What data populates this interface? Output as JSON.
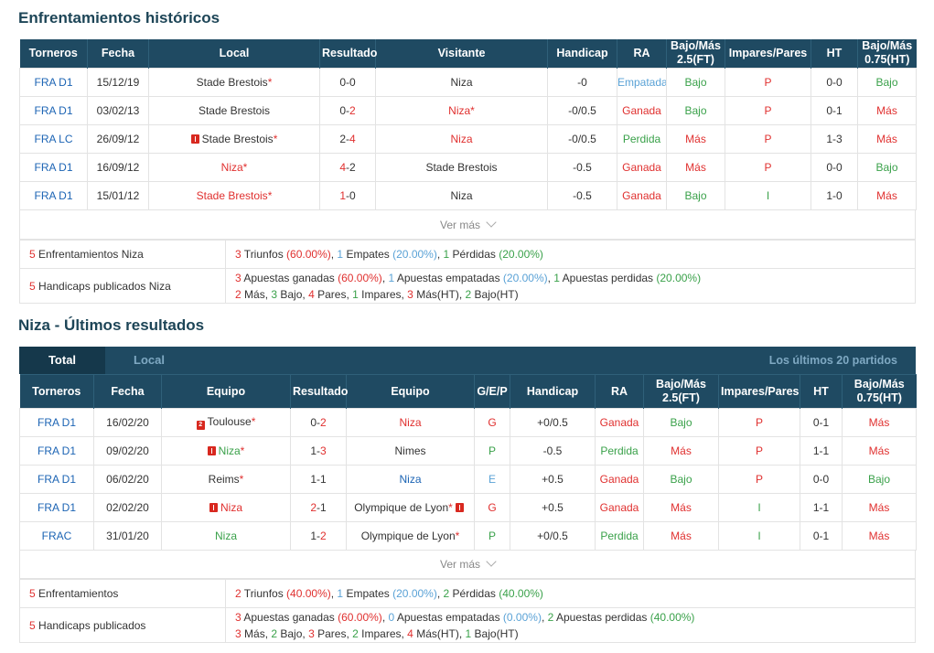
{
  "h2h": {
    "title": "Enfrentamientos históricos",
    "headers": [
      "Torneros",
      "Fecha",
      "Local",
      "Resultado",
      "Visitante",
      "Handicap",
      "RA",
      "Bajo/Más\n2.5(FT)",
      "Impares/Pares",
      "HT",
      "Bajo/Más\n0.75(HT)"
    ],
    "rows": [
      {
        "torneo": "FRA D1",
        "fecha": "15/12/19",
        "local": "Stade Brestois",
        "local_star": "*",
        "local_color": "dark",
        "local_flag": "",
        "res_a": "0",
        "res_b": "0",
        "res_a_color": "dark",
        "res_b_color": "dark",
        "visit": "Niza",
        "visit_star": "",
        "visit_color": "dark",
        "hc": "-0",
        "ra": "Empatada",
        "ra_color": "lblue",
        "bm": "Bajo",
        "bm_color": "green",
        "ip": "P",
        "ip_color": "red",
        "ht": "0-0",
        "bmht": "Bajo",
        "bmht_color": "green"
      },
      {
        "torneo": "FRA D1",
        "fecha": "03/02/13",
        "local": "Stade Brestois",
        "local_star": "",
        "local_color": "dark",
        "local_flag": "",
        "res_a": "0",
        "res_b": "2",
        "res_a_color": "dark",
        "res_b_color": "red",
        "visit": "Niza",
        "visit_star": "*",
        "visit_color": "red",
        "hc": "-0/0.5",
        "ra": "Ganada",
        "ra_color": "red",
        "bm": "Bajo",
        "bm_color": "green",
        "ip": "P",
        "ip_color": "red",
        "ht": "0-1",
        "bmht": "Más",
        "bmht_color": "red"
      },
      {
        "torneo": "FRA LC",
        "fecha": "26/09/12",
        "local": "Stade Brestois",
        "local_star": "*",
        "local_color": "dark",
        "local_flag": "1",
        "res_a": "2",
        "res_b": "4",
        "res_a_color": "dark",
        "res_b_color": "red",
        "visit": "Niza",
        "visit_star": "",
        "visit_color": "red",
        "hc": "-0/0.5",
        "ra": "Perdida",
        "ra_color": "green",
        "bm": "Más",
        "bm_color": "red",
        "ip": "P",
        "ip_color": "red",
        "ht": "1-3",
        "bmht": "Más",
        "bmht_color": "red"
      },
      {
        "torneo": "FRA D1",
        "fecha": "16/09/12",
        "local": "Niza",
        "local_star": "*",
        "local_color": "red",
        "local_flag": "",
        "res_a": "4",
        "res_b": "2",
        "res_a_color": "red",
        "res_b_color": "dark",
        "visit": "Stade Brestois",
        "visit_star": "",
        "visit_color": "dark",
        "hc": "-0.5",
        "ra": "Ganada",
        "ra_color": "red",
        "bm": "Más",
        "bm_color": "red",
        "ip": "P",
        "ip_color": "red",
        "ht": "0-0",
        "bmht": "Bajo",
        "bmht_color": "green"
      },
      {
        "torneo": "FRA D1",
        "fecha": "15/01/12",
        "local": "Stade Brestois",
        "local_star": "*",
        "local_color": "red",
        "local_flag": "",
        "res_a": "1",
        "res_b": "0",
        "res_a_color": "red",
        "res_b_color": "dark",
        "visit": "Niza",
        "visit_star": "",
        "visit_color": "dark",
        "hc": "-0.5",
        "ra": "Ganada",
        "ra_color": "red",
        "bm": "Bajo",
        "bm_color": "green",
        "ip": "I",
        "ip_color": "green",
        "ht": "1-0",
        "bmht": "Más",
        "bmht_color": "red"
      }
    ],
    "ver_mas": "Ver más",
    "summary": [
      {
        "label_n": "5",
        "label": " Enfrentamientos Niza",
        "lines": [
          [
            {
              "t": "3",
              "c": "red"
            },
            {
              "t": " Triunfos ",
              "c": "dark"
            },
            {
              "t": "(60.00%)",
              "c": "red"
            },
            {
              "t": ", ",
              "c": "dark"
            },
            {
              "t": "1",
              "c": "lblue"
            },
            {
              "t": " Empates ",
              "c": "dark"
            },
            {
              "t": "(20.00%)",
              "c": "lblue"
            },
            {
              "t": ", ",
              "c": "dark"
            },
            {
              "t": "1",
              "c": "green"
            },
            {
              "t": " Pérdidas ",
              "c": "dark"
            },
            {
              "t": "(20.00%)",
              "c": "green"
            }
          ]
        ]
      },
      {
        "label_n": "5",
        "label": " Handicaps publicados Niza",
        "lines": [
          [
            {
              "t": "3",
              "c": "red"
            },
            {
              "t": " Apuestas ganadas ",
              "c": "dark"
            },
            {
              "t": "(60.00%)",
              "c": "red"
            },
            {
              "t": ", ",
              "c": "dark"
            },
            {
              "t": "1",
              "c": "lblue"
            },
            {
              "t": " Apuestas empatadas ",
              "c": "dark"
            },
            {
              "t": "(20.00%)",
              "c": "lblue"
            },
            {
              "t": ", ",
              "c": "dark"
            },
            {
              "t": "1",
              "c": "green"
            },
            {
              "t": " Apuestas perdidas ",
              "c": "dark"
            },
            {
              "t": "(20.00%)",
              "c": "green"
            }
          ],
          [
            {
              "t": "2",
              "c": "red"
            },
            {
              "t": " Más, ",
              "c": "dark"
            },
            {
              "t": "3",
              "c": "green"
            },
            {
              "t": " Bajo, ",
              "c": "dark"
            },
            {
              "t": "4",
              "c": "red"
            },
            {
              "t": " Pares, ",
              "c": "dark"
            },
            {
              "t": "1",
              "c": "green"
            },
            {
              "t": " Impares, ",
              "c": "dark"
            },
            {
              "t": "3",
              "c": "red"
            },
            {
              "t": " Más(HT), ",
              "c": "dark"
            },
            {
              "t": "2",
              "c": "green"
            },
            {
              "t": " Bajo(HT)",
              "c": "dark"
            }
          ]
        ]
      }
    ]
  },
  "last": {
    "title": "Niza - Últimos resultados",
    "tabs": {
      "total": "Total",
      "local": "Local",
      "right": "Los últimos 20 partidos"
    },
    "headers": [
      "Torneros",
      "Fecha",
      "Equipo",
      "Resultado",
      "Equipo",
      "G/E/P",
      "Handicap",
      "RA",
      "Bajo/Más\n2.5(FT)",
      "Impares/Pares",
      "HT",
      "Bajo/Más\n0.75(HT)"
    ],
    "rows": [
      {
        "torneo": "FRA D1",
        "fecha": "16/02/20",
        "home": "Toulouse",
        "home_star": "*",
        "home_color": "dark",
        "home_flag": "2",
        "res_a": "0",
        "res_b": "2",
        "res_a_color": "dark",
        "res_b_color": "red",
        "away": "Niza",
        "away_star": "",
        "away_color": "red",
        "away_flag": "",
        "gep": "G",
        "gep_color": "red",
        "hc": "+0/0.5",
        "ra": "Ganada",
        "ra_color": "red",
        "bm": "Bajo",
        "bm_color": "green",
        "ip": "P",
        "ip_color": "red",
        "ht": "0-1",
        "bmht": "Más",
        "bmht_color": "red"
      },
      {
        "torneo": "FRA D1",
        "fecha": "09/02/20",
        "home": "Niza",
        "home_star": "*",
        "home_color": "green",
        "home_flag": "1",
        "res_a": "1",
        "res_b": "3",
        "res_a_color": "dark",
        "res_b_color": "red",
        "away": "Nimes",
        "away_star": "",
        "away_color": "dark",
        "away_flag": "",
        "gep": "P",
        "gep_color": "green",
        "hc": "-0.5",
        "ra": "Perdida",
        "ra_color": "green",
        "bm": "Más",
        "bm_color": "red",
        "ip": "P",
        "ip_color": "red",
        "ht": "1-1",
        "bmht": "Más",
        "bmht_color": "red"
      },
      {
        "torneo": "FRA D1",
        "fecha": "06/02/20",
        "home": "Reims",
        "home_star": "*",
        "home_color": "dark",
        "home_flag": "",
        "res_a": "1",
        "res_b": "1",
        "res_a_color": "dark",
        "res_b_color": "dark",
        "away": "Niza",
        "away_star": "",
        "away_color": "blue",
        "away_flag": "",
        "gep": "E",
        "gep_color": "lblue",
        "hc": "+0.5",
        "ra": "Ganada",
        "ra_color": "red",
        "bm": "Bajo",
        "bm_color": "green",
        "ip": "P",
        "ip_color": "red",
        "ht": "0-0",
        "bmht": "Bajo",
        "bmht_color": "green"
      },
      {
        "torneo": "FRA D1",
        "fecha": "02/02/20",
        "home": "Niza",
        "home_star": "",
        "home_color": "red",
        "home_flag": "1",
        "res_a": "2",
        "res_b": "1",
        "res_a_color": "red",
        "res_b_color": "dark",
        "away": "Olympique de Lyon",
        "away_star": "*",
        "away_color": "dark",
        "away_flag": "1",
        "gep": "G",
        "gep_color": "red",
        "hc": "+0.5",
        "ra": "Ganada",
        "ra_color": "red",
        "bm": "Más",
        "bm_color": "red",
        "ip": "I",
        "ip_color": "green",
        "ht": "1-1",
        "bmht": "Más",
        "bmht_color": "red"
      },
      {
        "torneo": "FRAC",
        "fecha": "31/01/20",
        "home": "Niza",
        "home_star": "",
        "home_color": "green",
        "home_flag": "",
        "res_a": "1",
        "res_b": "2",
        "res_a_color": "dark",
        "res_b_color": "red",
        "away": "Olympique de Lyon",
        "away_star": "*",
        "away_color": "dark",
        "away_flag": "",
        "gep": "P",
        "gep_color": "green",
        "hc": "+0/0.5",
        "ra": "Perdida",
        "ra_color": "green",
        "bm": "Más",
        "bm_color": "red",
        "ip": "I",
        "ip_color": "green",
        "ht": "0-1",
        "bmht": "Más",
        "bmht_color": "red"
      }
    ],
    "ver_mas": "Ver más",
    "summary": [
      {
        "label_n": "5",
        "label": " Enfrentamientos",
        "lines": [
          [
            {
              "t": "2",
              "c": "red"
            },
            {
              "t": " Triunfos ",
              "c": "dark"
            },
            {
              "t": "(40.00%)",
              "c": "red"
            },
            {
              "t": ", ",
              "c": "dark"
            },
            {
              "t": "1",
              "c": "lblue"
            },
            {
              "t": " Empates ",
              "c": "dark"
            },
            {
              "t": "(20.00%)",
              "c": "lblue"
            },
            {
              "t": ", ",
              "c": "dark"
            },
            {
              "t": "2",
              "c": "green"
            },
            {
              "t": " Pérdidas ",
              "c": "dark"
            },
            {
              "t": "(40.00%)",
              "c": "green"
            }
          ]
        ]
      },
      {
        "label_n": "5",
        "label": " Handicaps publicados",
        "lines": [
          [
            {
              "t": "3",
              "c": "red"
            },
            {
              "t": " Apuestas ganadas ",
              "c": "dark"
            },
            {
              "t": "(60.00%)",
              "c": "red"
            },
            {
              "t": ", ",
              "c": "dark"
            },
            {
              "t": "0",
              "c": "lblue"
            },
            {
              "t": " Apuestas empatadas ",
              "c": "dark"
            },
            {
              "t": "(0.00%)",
              "c": "lblue"
            },
            {
              "t": ", ",
              "c": "dark"
            },
            {
              "t": "2",
              "c": "green"
            },
            {
              "t": " Apuestas perdidas ",
              "c": "dark"
            },
            {
              "t": "(40.00%)",
              "c": "green"
            }
          ],
          [
            {
              "t": "3",
              "c": "red"
            },
            {
              "t": " Más, ",
              "c": "dark"
            },
            {
              "t": "2",
              "c": "green"
            },
            {
              "t": " Bajo, ",
              "c": "dark"
            },
            {
              "t": "3",
              "c": "red"
            },
            {
              "t": " Pares, ",
              "c": "dark"
            },
            {
              "t": "2",
              "c": "green"
            },
            {
              "t": " Impares, ",
              "c": "dark"
            },
            {
              "t": "4",
              "c": "red"
            },
            {
              "t": " Más(HT), ",
              "c": "dark"
            },
            {
              "t": "1",
              "c": "green"
            },
            {
              "t": " Bajo(HT)",
              "c": "dark"
            }
          ]
        ]
      }
    ]
  }
}
